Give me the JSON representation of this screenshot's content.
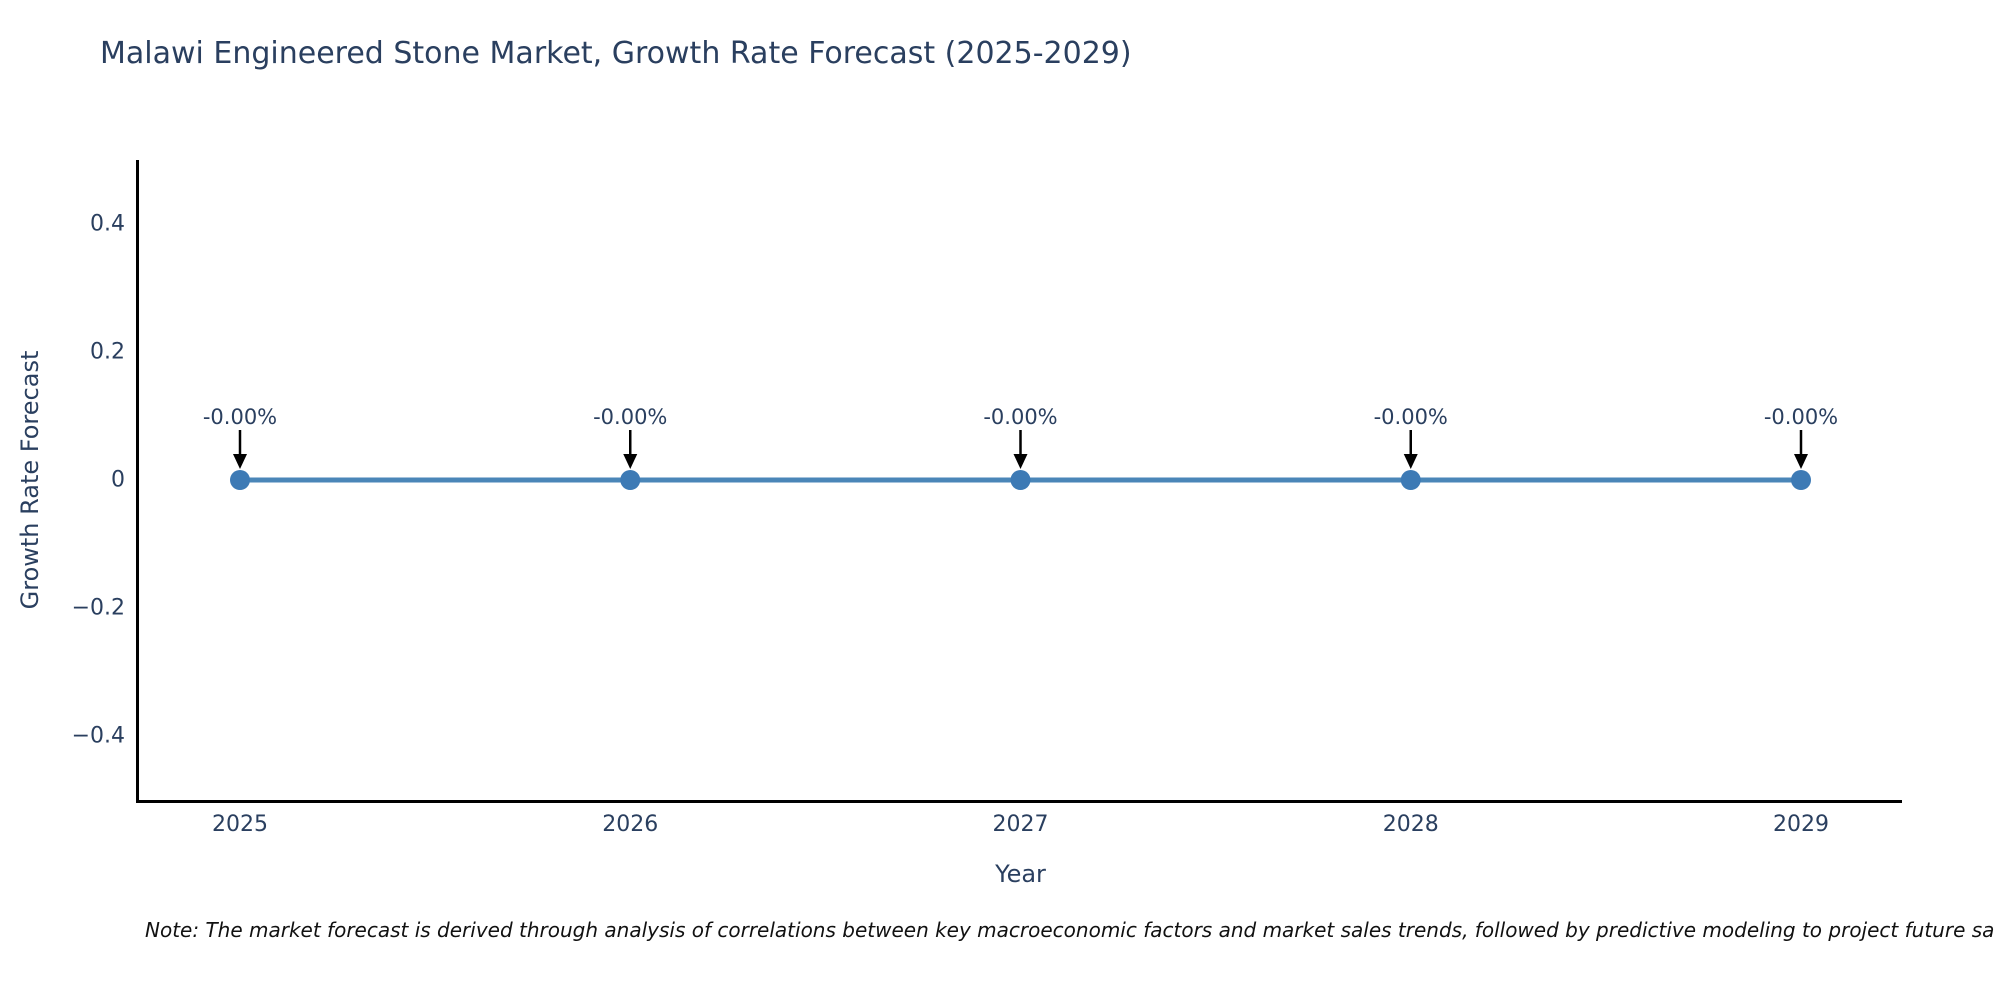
{
  "title": "Malawi Engineered Stone Market, Growth Rate Forecast (2025-2029)",
  "note": "Note: The market forecast is derived through analysis of correlations between key macroeconomic factors and market sales trends, followed by predictive modeling to project future sa",
  "chart_data": {
    "type": "line",
    "title": "Malawi Engineered Stone Market, Growth Rate Forecast (2025-2029)",
    "xlabel": "Year",
    "ylabel": "Growth Rate Forecast",
    "categories": [
      "2025",
      "2026",
      "2027",
      "2028",
      "2029"
    ],
    "series": [
      {
        "name": "Growth Rate Forecast",
        "values": [
          0,
          0,
          0,
          0,
          0
        ]
      }
    ],
    "point_labels": [
      "-0.00%",
      "-0.00%",
      "-0.00%",
      "-0.00%",
      "-0.00%"
    ],
    "yticks": [
      0.4,
      0.2,
      0,
      -0.2,
      -0.4
    ],
    "ytick_labels": [
      "0.4",
      "0.2",
      "0",
      "−0.2",
      "−0.4"
    ],
    "ylim": [
      -0.5,
      0.5
    ],
    "grid": false,
    "legend_visible": false,
    "colors": {
      "line": "#4a86b8",
      "marker": "#3d7ab5",
      "annotation_arrow": "#000000",
      "text": "#2a3f5f",
      "axis_line": "#000000"
    }
  }
}
